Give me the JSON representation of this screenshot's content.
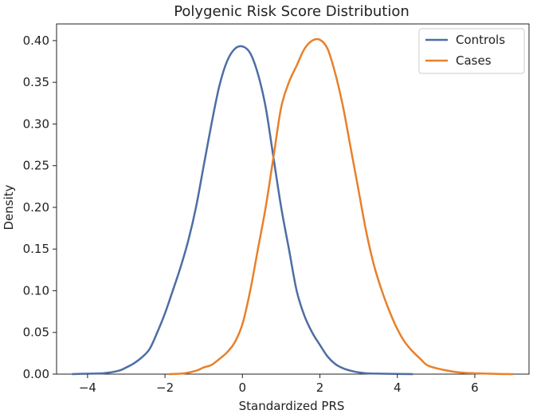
{
  "chart_data": {
    "type": "line",
    "title": "Polygenic Risk Score Distribution",
    "xlabel": "Standardized PRS",
    "ylabel": "Density",
    "xlim": [
      -4.8,
      7.4
    ],
    "ylim": [
      0,
      0.42
    ],
    "xticks": [
      -4,
      -2,
      0,
      2,
      4,
      6
    ],
    "xtick_labels": [
      "−4",
      "−2",
      "0",
      "2",
      "4",
      "6"
    ],
    "yticks": [
      0.0,
      0.05,
      0.1,
      0.15,
      0.2,
      0.25,
      0.3,
      0.35,
      0.4
    ],
    "ytick_labels": [
      "0.00",
      "0.05",
      "0.10",
      "0.15",
      "0.20",
      "0.25",
      "0.30",
      "0.35",
      "0.40"
    ],
    "grid": false,
    "legend_position": "top-right",
    "series": [
      {
        "name": "Controls",
        "color": "#4c6ea3",
        "x": [
          -4.4,
          -4.0,
          -3.6,
          -3.2,
          -3.0,
          -2.8,
          -2.6,
          -2.4,
          -2.2,
          -2.0,
          -1.8,
          -1.6,
          -1.4,
          -1.2,
          -1.0,
          -0.8,
          -0.6,
          -0.4,
          -0.2,
          0.0,
          0.2,
          0.4,
          0.6,
          0.8,
          1.0,
          1.2,
          1.4,
          1.6,
          1.8,
          2.0,
          2.2,
          2.4,
          2.6,
          2.8,
          3.0,
          3.2,
          3.6,
          4.0,
          4.4
        ],
        "y": [
          0.0,
          0.0005,
          0.001,
          0.004,
          0.008,
          0.013,
          0.02,
          0.03,
          0.05,
          0.073,
          0.1,
          0.128,
          0.16,
          0.2,
          0.25,
          0.3,
          0.345,
          0.375,
          0.39,
          0.393,
          0.385,
          0.36,
          0.32,
          0.26,
          0.2,
          0.15,
          0.1,
          0.07,
          0.05,
          0.035,
          0.021,
          0.012,
          0.007,
          0.004,
          0.002,
          0.001,
          0.0005,
          0.0002,
          0.0
        ]
      },
      {
        "name": "Cases",
        "color": "#e8802a",
        "x": [
          -1.9,
          -1.5,
          -1.2,
          -1.0,
          -0.8,
          -0.6,
          -0.4,
          -0.2,
          0.0,
          0.2,
          0.4,
          0.6,
          0.8,
          1.0,
          1.2,
          1.4,
          1.6,
          1.8,
          2.0,
          2.2,
          2.4,
          2.6,
          2.8,
          3.0,
          3.2,
          3.4,
          3.6,
          3.8,
          4.0,
          4.2,
          4.4,
          4.6,
          4.8,
          5.2,
          5.6,
          6.0,
          6.6,
          7.0
        ],
        "y": [
          0.0,
          0.001,
          0.004,
          0.008,
          0.011,
          0.018,
          0.026,
          0.038,
          0.06,
          0.1,
          0.15,
          0.2,
          0.26,
          0.32,
          0.35,
          0.37,
          0.39,
          0.4,
          0.401,
          0.39,
          0.36,
          0.32,
          0.27,
          0.22,
          0.17,
          0.13,
          0.1,
          0.075,
          0.054,
          0.038,
          0.027,
          0.018,
          0.01,
          0.005,
          0.002,
          0.001,
          0.0002,
          0.0
        ]
      }
    ]
  }
}
